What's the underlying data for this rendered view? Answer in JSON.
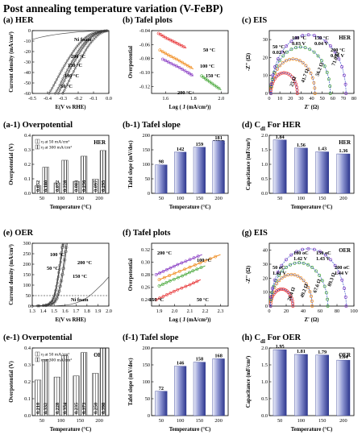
{
  "page_title": "Post annealing temperature variation (V-FeBP)",
  "colors": {
    "bar_light": "#eef0fa",
    "bar_dark": "#3c46a8",
    "t50": "#e8383a",
    "t100": "#f08c1e",
    "t150": "#49a83b",
    "t200": "#8a3ec4",
    "nifoam": "#555555",
    "eis_fit": "#1f3fbf"
  },
  "chart_data": [
    {
      "id": "a",
      "type": "line",
      "title": "(a) HER",
      "xlabel": "E(V vs RHE)",
      "ylabel": "Current density (mA/cm²)",
      "xlim": [
        -0.5,
        0.0
      ],
      "ylim": [
        -60,
        0
      ],
      "xticks": [
        "-0.5",
        "-0.4",
        "-0.3",
        "-0.2",
        "-0.1",
        "0.0"
      ],
      "yticks": [
        "0",
        "-10",
        "-20",
        "-30",
        "-40",
        "-50",
        "-60"
      ],
      "series": [
        {
          "name": "Ni foam",
          "x": [
            -0.5,
            -0.45,
            -0.4,
            -0.35,
            -0.3,
            -0.25,
            -0.2,
            -0.15,
            -0.1,
            -0.05,
            0.0
          ],
          "y": [
            -8.5,
            -6.5,
            -5,
            -3.8,
            -2.8,
            -2,
            -1.3,
            -0.8,
            -0.4,
            -0.2,
            0
          ]
        },
        {
          "name": "200 °C",
          "x": [
            -0.3,
            -0.28,
            -0.26,
            -0.24,
            -0.22,
            -0.2,
            -0.18,
            -0.16,
            -0.14,
            -0.12,
            -0.1,
            -0.08,
            -0.06,
            -0.04,
            -0.02,
            0.0
          ],
          "y": [
            -60,
            -54,
            -48,
            -42,
            -36,
            -31,
            -26,
            -21,
            -16,
            -12,
            -8.5,
            -5.5,
            -3,
            -1.5,
            -0.5,
            0
          ]
        },
        {
          "name": "150 °C",
          "x": [
            -0.33,
            -0.31,
            -0.29,
            -0.27,
            -0.25,
            -0.23,
            -0.21,
            -0.19,
            -0.17,
            -0.15,
            -0.13,
            -0.11,
            -0.09,
            -0.07,
            -0.05,
            -0.03,
            0.0
          ],
          "y": [
            -60,
            -54,
            -48,
            -42,
            -36,
            -31,
            -26,
            -21,
            -16.5,
            -12.5,
            -9,
            -6,
            -3.8,
            -2.2,
            -1,
            -0.4,
            0
          ]
        },
        {
          "name": "100 °C",
          "x": [
            -0.35,
            -0.33,
            -0.31,
            -0.29,
            -0.27,
            -0.25,
            -0.23,
            -0.21,
            -0.19,
            -0.17,
            -0.15,
            -0.13,
            -0.11,
            -0.09,
            -0.07,
            -0.05,
            -0.03,
            0.0
          ],
          "y": [
            -60,
            -55,
            -49,
            -43,
            -37.5,
            -32,
            -27,
            -22,
            -17.5,
            -13.5,
            -10,
            -7,
            -4.8,
            -3,
            -1.8,
            -0.9,
            -0.3,
            0
          ]
        },
        {
          "name": "50 °C",
          "x": [
            -0.39,
            -0.37,
            -0.35,
            -0.33,
            -0.31,
            -0.29,
            -0.27,
            -0.25,
            -0.23,
            -0.21,
            -0.19,
            -0.17,
            -0.15,
            -0.13,
            -0.11,
            -0.09,
            -0.07,
            -0.05,
            0.0
          ],
          "y": [
            -60,
            -55,
            -49.5,
            -44,
            -38.5,
            -33.5,
            -28.5,
            -24,
            -19.5,
            -15.5,
            -12,
            -9,
            -6.5,
            -4.5,
            -3,
            -1.9,
            -1.1,
            -0.5,
            0
          ]
        }
      ]
    },
    {
      "id": "b",
      "type": "line",
      "title": "(b) Tafel plots",
      "xlabel": "Log ( J (mA/cm²))",
      "ylabel": "Overpotential",
      "xlim": [
        1.5,
        2.05
      ],
      "ylim": [
        -0.13,
        -0.04
      ],
      "xticks": [
        "1.6",
        "1.8",
        "2.0"
      ],
      "yticks": [
        "-0.04",
        "-0.06",
        "-0.08",
        "-0.10",
        "-0.12"
      ],
      "series": [
        {
          "name": "50 °C",
          "x": [
            1.55,
            1.6,
            1.65,
            1.7,
            1.75
          ],
          "y": [
            -0.044,
            -0.05,
            -0.055,
            -0.06,
            -0.065
          ]
        },
        {
          "name": "100 °C",
          "x": [
            1.56,
            1.62,
            1.68,
            1.74,
            1.8
          ],
          "y": [
            -0.068,
            -0.075,
            -0.081,
            -0.088,
            -0.095
          ]
        },
        {
          "name": "150 °C",
          "x": [
            1.86,
            1.9,
            1.95,
            2.0
          ],
          "y": [
            -0.105,
            -0.111,
            -0.118,
            -0.125
          ]
        },
        {
          "name": "200 °C",
          "x": [
            1.58,
            1.64,
            1.7,
            1.76,
            1.8
          ],
          "y": [
            -0.081,
            -0.087,
            -0.093,
            -0.1,
            -0.105
          ]
        }
      ]
    },
    {
      "id": "c",
      "type": "scatter",
      "title": "(c) EIS",
      "xlabel": "Z' (Ω)",
      "ylabel": "-Z\" (Ω)",
      "xlim": [
        0,
        80
      ],
      "ylim": [
        0,
        35
      ],
      "xticks": [
        "0",
        "10",
        "20",
        "30",
        "40",
        "50",
        "60",
        "70",
        "80"
      ],
      "yticks": [
        "0",
        "10",
        "20",
        "30"
      ],
      "tag": "HER",
      "annotations": [
        "50 °C\n0.02 V",
        "100 °C\n0.03 V",
        "150 °C\n0.04 V",
        "200 °C\n0.05 V"
      ],
      "arc_labels": [
        "25 Ω",
        "41.7 Ω",
        "56.2 Ω",
        "71.0 Ω"
      ],
      "series": [
        {
          "name": "50 °C",
          "start": 1.5,
          "diameter": 25
        },
        {
          "name": "100 °C",
          "start": 1.5,
          "diameter": 41.7
        },
        {
          "name": "150 °C",
          "start": 1.5,
          "diameter": 56.2
        },
        {
          "name": "200 °C",
          "start": 1.5,
          "diameter": 71.0
        }
      ]
    },
    {
      "id": "a1",
      "type": "bar",
      "title": "(a-1) Overpotential",
      "xlabel": "Temperature (°C)",
      "ylabel": "Overpotential (V)",
      "ylim": [
        0,
        0.4
      ],
      "yticks": [
        "0.0",
        "0.1",
        "0.2",
        "0.3",
        "0.4"
      ],
      "tag": "HER",
      "categories": [
        "50",
        "100",
        "150",
        "200"
      ],
      "series": [
        {
          "name": "η at 50 mA/cm²",
          "values": [
            0.052,
            0.072,
            0.083,
            0.097
          ]
        },
        {
          "name": "η at 300 mA/cm²",
          "values": [
            0.18,
            0.228,
            0.256,
            0.295
          ]
        }
      ],
      "labels": [
        [
          "0.052",
          "0.072",
          "0.083",
          "0.097"
        ],
        [
          "0.180",
          "0.228",
          "0.256",
          "0.295"
        ]
      ]
    },
    {
      "id": "b1",
      "type": "bar",
      "title": "(b-1) Tafel slope",
      "xlabel": "Temperature (°C)",
      "ylabel": "Tafel slope (mV/dec)",
      "ylim": [
        0,
        200
      ],
      "yticks": [
        "0",
        "50",
        "100",
        "150",
        "200"
      ],
      "tag": "HER",
      "categories": [
        "50",
        "100",
        "150",
        "200"
      ],
      "values": [
        98,
        142,
        159,
        181
      ],
      "labels": [
        "98",
        "142",
        "159",
        "181"
      ]
    },
    {
      "id": "d",
      "type": "bar",
      "title": "(d) C",
      "title_sub": "dl",
      "title_rest": " For HER",
      "xlabel": "Temperature (°C)",
      "ylabel": "Capacitance (mF/cm²)",
      "ylim": [
        0,
        2
      ],
      "yticks": [
        "0.0",
        "0.5",
        "1.0",
        "1.5",
        "2.0"
      ],
      "tag": "HER",
      "categories": [
        "50",
        "100",
        "150",
        "200"
      ],
      "values": [
        1.84,
        1.56,
        1.43,
        1.36
      ],
      "labels": [
        "1.84",
        "1.56",
        "1.43",
        "1.36"
      ]
    },
    {
      "id": "e",
      "type": "line",
      "title": "(e) OER",
      "xlabel": "E(V vs RHE)",
      "ylabel": "Current density (mA/cm²)",
      "xlim": [
        1.3,
        2.0
      ],
      "ylim": [
        0,
        300
      ],
      "xticks": [
        "1.3",
        "1.4",
        "1.5",
        "1.6",
        "1.7",
        "1.8",
        "1.9",
        "2.0"
      ],
      "yticks": [
        "0",
        "50",
        "100",
        "150",
        "200",
        "250",
        "300"
      ],
      "series": [
        {
          "name": "Ni foam",
          "x": [
            1.3,
            1.5,
            1.6,
            1.65,
            1.7,
            1.75,
            1.8,
            1.85,
            1.9,
            1.95,
            2.0
          ],
          "y": [
            0,
            1,
            4,
            8,
            15,
            25,
            40,
            60,
            85,
            110,
            140
          ]
        },
        {
          "name": "100 °C",
          "x": [
            1.3,
            1.4,
            1.45,
            1.48,
            1.5,
            1.52,
            1.54,
            1.56,
            1.58,
            1.59
          ],
          "y": [
            0,
            2,
            8,
            20,
            40,
            80,
            140,
            210,
            280,
            300
          ]
        },
        {
          "name": "50 °C",
          "x": [
            1.3,
            1.4,
            1.45,
            1.48,
            1.5,
            1.52,
            1.54,
            1.56,
            1.57,
            1.58
          ],
          "y": [
            0,
            3,
            10,
            25,
            50,
            95,
            160,
            230,
            280,
            300
          ]
        },
        {
          "name": "200 °C",
          "x": [
            1.3,
            1.42,
            1.47,
            1.5,
            1.52,
            1.54,
            1.56,
            1.58,
            1.6,
            1.61
          ],
          "y": [
            0,
            2,
            8,
            20,
            38,
            70,
            120,
            180,
            260,
            300
          ]
        },
        {
          "name": "150 °C",
          "x": [
            1.3,
            1.43,
            1.48,
            1.51,
            1.53,
            1.55,
            1.57,
            1.59,
            1.61,
            1.62
          ],
          "y": [
            0,
            2,
            8,
            20,
            38,
            70,
            120,
            180,
            260,
            300
          ]
        }
      ]
    },
    {
      "id": "f",
      "type": "line",
      "title": "(f) Tafel plots",
      "xlabel": "Log ( J (mA/cm²))",
      "ylabel": "Overpotential",
      "xlim": [
        1.85,
        2.35
      ],
      "ylim": [
        0.23,
        0.33
      ],
      "xticks": [
        "1.9",
        "2.0",
        "2.1",
        "2.2",
        "2.3"
      ],
      "yticks": [
        "0.24",
        "0.26",
        "0.28",
        "0.30",
        "0.32"
      ],
      "series": [
        {
          "name": "200 °C",
          "x": [
            1.88,
            1.95,
            2.02,
            2.1,
            2.18
          ],
          "y": [
            0.28,
            0.288,
            0.296,
            0.304,
            0.312
          ]
        },
        {
          "name": "100 °C",
          "x": [
            1.9,
            2.0,
            2.1,
            2.2,
            2.3
          ],
          "y": [
            0.272,
            0.282,
            0.292,
            0.302,
            0.312
          ]
        },
        {
          "name": "150 °C",
          "x": [
            1.9,
            1.97,
            2.05,
            2.12,
            2.2
          ],
          "y": [
            0.262,
            0.27,
            0.278,
            0.286,
            0.294
          ]
        },
        {
          "name": "50 °C",
          "x": [
            1.88,
            1.95,
            2.02,
            2.1,
            2.17
          ],
          "y": [
            0.24,
            0.248,
            0.256,
            0.264,
            0.272
          ]
        }
      ]
    },
    {
      "id": "g",
      "type": "scatter",
      "title": "(g) EIS",
      "xlabel": "Z' (Ω)",
      "ylabel": "-Z\" (Ω)",
      "xlim": [
        0,
        100
      ],
      "ylim": [
        0,
        45
      ],
      "xticks": [
        "0",
        "20",
        "40",
        "60",
        "80",
        "100"
      ],
      "yticks": [
        "0",
        "10",
        "20",
        "30",
        "40"
      ],
      "tag": "OER",
      "annotations": [
        "50 oC\n1.41 V",
        "100 oC\n1.42 V",
        "150 oC\n1.43 V",
        "200 oC\n1.44 V"
      ],
      "arc_labels": [
        "26.4 Ω",
        "49.2 Ω",
        "67.6 Ω",
        "89.3 Ω"
      ],
      "series": [
        {
          "name": "50 °C",
          "start": 1.5,
          "diameter": 26.4
        },
        {
          "name": "100 °C",
          "start": 1.5,
          "diameter": 49.2
        },
        {
          "name": "150 °C",
          "start": 1.5,
          "diameter": 67.6
        },
        {
          "name": "200 °C",
          "start": 1.5,
          "diameter": 89.3
        }
      ]
    },
    {
      "id": "e1",
      "type": "bar",
      "title": "(e-1) Overpotential",
      "xlabel": "Temperature (°C)",
      "ylabel": "Overpotential (V)",
      "ylim": [
        0,
        0.4
      ],
      "yticks": [
        "0.0",
        "0.1",
        "0.2",
        "0.3",
        "0.4"
      ],
      "tag": "OER",
      "categories": [
        "50",
        "100",
        "150",
        "200"
      ],
      "series": [
        {
          "name": "η at 50 mA/cm²",
          "values": [
            0.21,
            0.228,
            0.235,
            0.25
          ]
        },
        {
          "name": "η at 300 mA/cm²",
          "values": [
            0.332,
            0.354,
            0.373,
            0.398
          ]
        }
      ],
      "labels": [
        [
          "0.210",
          "0.228",
          "0.235",
          "0.250"
        ],
        [
          "0.332",
          "0.354",
          "0.373",
          "0.398"
        ]
      ]
    },
    {
      "id": "f1",
      "type": "bar",
      "title": "(f-1) Tafel slope",
      "xlabel": "Temperature (°C)",
      "ylabel": "Tafel slope (mV/dec)",
      "ylim": [
        0,
        200
      ],
      "yticks": [
        "0",
        "50",
        "100",
        "150",
        "200"
      ],
      "categories": [
        "50",
        "100",
        "150",
        "200"
      ],
      "values": [
        72,
        146,
        158,
        168
      ],
      "labels": [
        "72",
        "146",
        "158",
        "168"
      ]
    },
    {
      "id": "h",
      "type": "bar",
      "title": "(h) C",
      "title_sub": "dl",
      "title_rest": " For OER",
      "xlabel": "Temperature (°C)",
      "ylabel": "Capacitance (mF/cm²)",
      "ylim": [
        0,
        2
      ],
      "yticks": [
        "0.0",
        "0.5",
        "1.0",
        "1.5",
        "2.0"
      ],
      "tag": "OER",
      "categories": [
        "50",
        "100",
        "150",
        "200"
      ],
      "values": [
        1.95,
        1.81,
        1.79,
        1.64
      ],
      "labels": [
        "1.95",
        "1.81",
        "1.79",
        "1.64"
      ]
    }
  ]
}
